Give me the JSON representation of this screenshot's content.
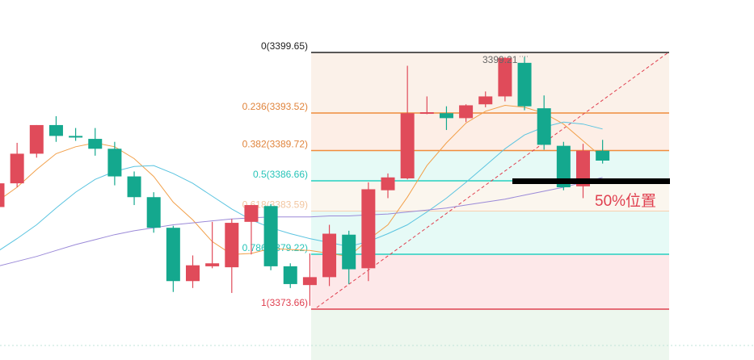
{
  "chart_data": {
    "type": "candlestick",
    "y_range": [
      3369.8,
      3402.0
    ],
    "fib_range": [
      3373.66,
      3399.65
    ],
    "fib_levels": [
      {
        "ratio": 0,
        "price": 3399.65,
        "label": "0(3399.65)",
        "line_color": "#222222",
        "text_color": "#222222"
      },
      {
        "ratio": 0.236,
        "price": 3393.52,
        "label": "0.236(3393.52)",
        "line_color": "#f08c3c",
        "text_color": "#e0843c"
      },
      {
        "ratio": 0.382,
        "price": 3389.72,
        "label": "0.382(3389.72)",
        "line_color": "#f08c3c",
        "text_color": "#e0843c"
      },
      {
        "ratio": 0.5,
        "price": 3386.66,
        "label": "0.5(3386.66)",
        "line_color": "#26d0c0",
        "text_color": "#26c4b8"
      },
      {
        "ratio": 0.618,
        "price": 3383.59,
        "label": "0.618(3383.59)",
        "line_color": "#f7d0b0",
        "text_color": "#f2c6a0"
      },
      {
        "ratio": 0.786,
        "price": 3379.22,
        "label": "0.786(3379.22)",
        "line_color": "#26d0c0",
        "text_color": "#26c4b8"
      },
      {
        "ratio": 1,
        "price": 3373.66,
        "label": "1(3373.66)",
        "line_color": "#e04050",
        "text_color": "#e04050"
      }
    ],
    "fib_zone_colors": [
      "#fbf1e9",
      "#fdeee6",
      "#e6faf6",
      "#fbf6ee",
      "#e6faf6",
      "#fde8e9",
      "#edf7ee"
    ],
    "candles": [
      {
        "o": 3384.0,
        "h": 3386.5,
        "c": 3386.4,
        "l": 3383.0
      },
      {
        "o": 3386.4,
        "h": 3390.5,
        "c": 3389.4,
        "l": 3386.0
      },
      {
        "o": 3389.4,
        "h": 3392.3,
        "c": 3392.3,
        "l": 3389.0
      },
      {
        "o": 3392.3,
        "h": 3393.2,
        "c": 3391.2,
        "l": 3390.6
      },
      {
        "o": 3391.2,
        "h": 3392.0,
        "c": 3391.1,
        "l": 3390.7
      },
      {
        "o": 3390.9,
        "h": 3392.0,
        "c": 3389.9,
        "l": 3389.2
      },
      {
        "o": 3389.9,
        "h": 3390.6,
        "c": 3387.1,
        "l": 3386.2
      },
      {
        "o": 3387.1,
        "h": 3387.6,
        "c": 3385.0,
        "l": 3384.2
      },
      {
        "o": 3385.0,
        "h": 3385.5,
        "c": 3381.9,
        "l": 3381.4
      },
      {
        "o": 3381.9,
        "h": 3382.1,
        "c": 3376.5,
        "l": 3375.4
      },
      {
        "o": 3376.5,
        "h": 3379.1,
        "c": 3378.1,
        "l": 3375.8
      },
      {
        "o": 3378.0,
        "h": 3382.5,
        "c": 3378.3,
        "l": 3377.8
      },
      {
        "o": 3377.9,
        "h": 3382.8,
        "c": 3382.4,
        "l": 3375.3
      },
      {
        "o": 3382.5,
        "h": 3384.2,
        "c": 3384.2,
        "l": 3379.2
      },
      {
        "o": 3384.1,
        "h": 3384.3,
        "c": 3378.0,
        "l": 3377.6
      },
      {
        "o": 3378.0,
        "h": 3378.3,
        "c": 3376.2,
        "l": 3375.8
      },
      {
        "o": 3376.1,
        "h": 3379.3,
        "c": 3376.9,
        "l": 3374.0
      },
      {
        "o": 3376.9,
        "h": 3382.2,
        "c": 3381.3,
        "l": 3376.0
      },
      {
        "o": 3381.2,
        "h": 3381.6,
        "c": 3377.7,
        "l": 3376.2
      },
      {
        "o": 3377.8,
        "h": 3386.5,
        "c": 3385.8,
        "l": 3376.5
      },
      {
        "o": 3385.7,
        "h": 3387.4,
        "c": 3387.0,
        "l": 3384.9
      },
      {
        "o": 3386.9,
        "h": 3398.3,
        "c": 3393.5,
        "l": 3386.8
      },
      {
        "o": 3393.5,
        "h": 3395.2,
        "c": 3393.6,
        "l": 3393.4
      },
      {
        "o": 3393.5,
        "h": 3394.2,
        "c": 3393.0,
        "l": 3391.8
      },
      {
        "o": 3393.0,
        "h": 3394.4,
        "c": 3394.3,
        "l": 3392.6
      },
      {
        "o": 3394.4,
        "h": 3395.7,
        "c": 3395.2,
        "l": 3394.1
      },
      {
        "o": 3395.2,
        "h": 3399.2,
        "c": 3399.1,
        "l": 3394.7
      },
      {
        "o": 3398.6,
        "h": 3399.2,
        "c": 3394.2,
        "l": 3393.8
      },
      {
        "o": 3394.0,
        "h": 3395.3,
        "c": 3390.3,
        "l": 3389.8
      },
      {
        "o": 3390.2,
        "h": 3390.6,
        "c": 3386.0,
        "l": 3385.7
      },
      {
        "o": 3386.1,
        "h": 3390.4,
        "c": 3389.7,
        "l": 3384.9
      },
      {
        "o": 3389.7,
        "h": 3390.8,
        "c": 3388.7,
        "l": 3388.4
      }
    ],
    "ma_lines": [
      {
        "name": "MA5",
        "color": "#f2a04a",
        "values": [
          3384.6,
          3386.0,
          3387.8,
          3389.4,
          3390.1,
          3390.5,
          3390.1,
          3388.9,
          3387.1,
          3384.5,
          3382.7,
          3380.5,
          3379.2,
          3379.3,
          3379.8,
          3379.7,
          3379.6,
          3379.3,
          3379.0,
          3380.7,
          3382.2,
          3385.0,
          3388.2,
          3390.5,
          3392.5,
          3393.7,
          3394.3,
          3394.1,
          3393.5,
          3392.4,
          3390.7,
          3389.0
        ]
      },
      {
        "name": "MA10",
        "color": "#5bc4e0",
        "values": [
          3379.5,
          3380.8,
          3382.2,
          3383.9,
          3385.5,
          3386.8,
          3387.6,
          3388.1,
          3388.2,
          3387.4,
          3386.4,
          3385.1,
          3383.8,
          3382.7,
          3381.9,
          3381.3,
          3380.8,
          3380.4,
          3380.0,
          3380.5,
          3381.3,
          3382.2,
          3383.5,
          3384.9,
          3386.5,
          3388.2,
          3389.9,
          3391.3,
          3392.1,
          3392.6,
          3392.4,
          3391.9
        ]
      },
      {
        "name": "MA30",
        "color": "#9b8ad8",
        "values": [
          3378.0,
          3378.5,
          3379.0,
          3379.6,
          3380.2,
          3380.7,
          3381.2,
          3381.6,
          3381.9,
          3382.2,
          3382.4,
          3382.6,
          3382.8,
          3382.9,
          3383.0,
          3383.0,
          3383.0,
          3383.1,
          3383.1,
          3383.2,
          3383.3,
          3383.5,
          3383.7,
          3383.9,
          3384.2,
          3384.5,
          3384.8,
          3385.2,
          3385.6,
          3386.0,
          3386.5,
          3387.0
        ]
      }
    ],
    "up_color": "#e04b5a",
    "down_color": "#14a88e",
    "high_marker": {
      "label": "3399.21",
      "candle_index": 26
    },
    "annotation": {
      "text": "50%位置",
      "color": "#e04050"
    }
  }
}
